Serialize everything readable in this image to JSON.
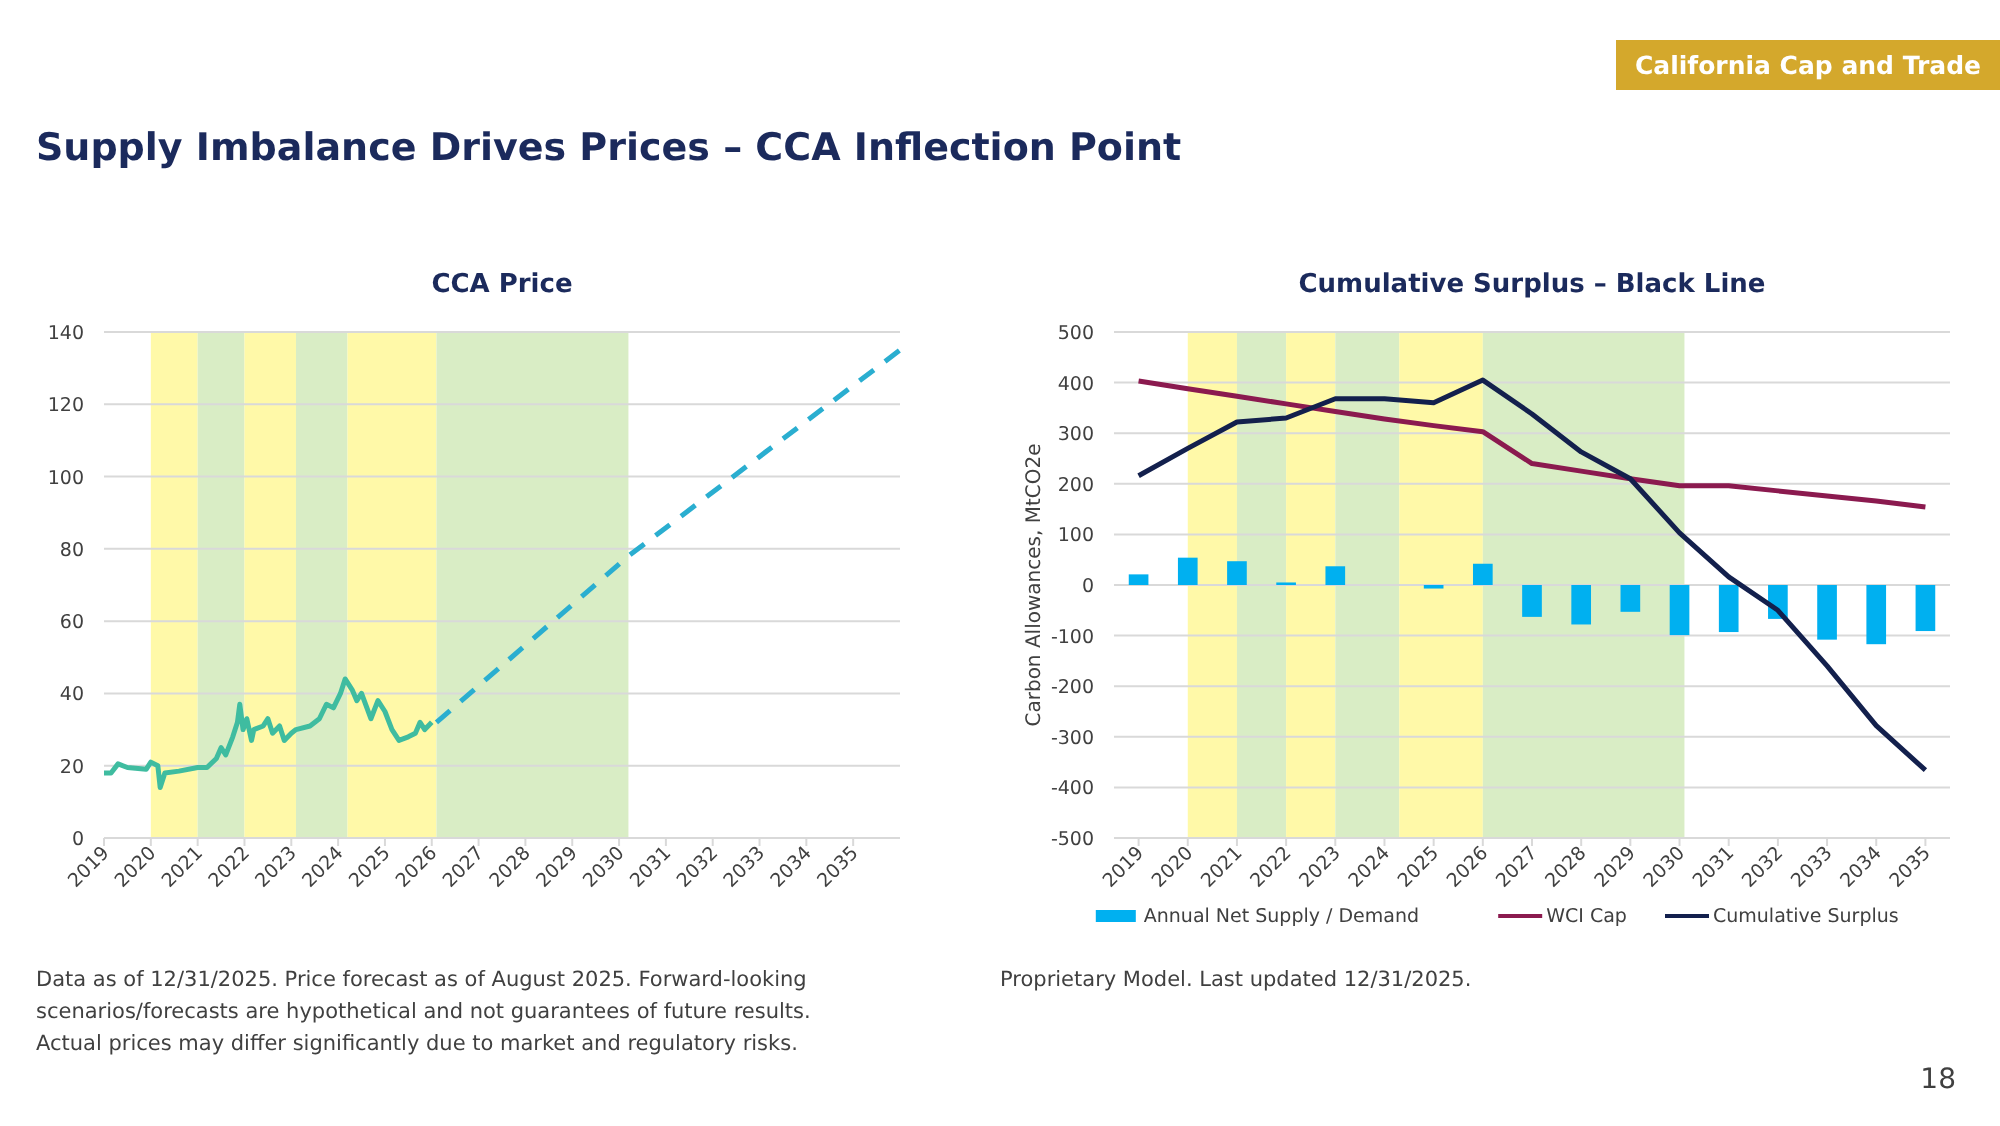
{
  "chart_data": [
    {
      "type": "other",
      "title": "Supply Imbalance Drives Prices – CCA Inflection Point",
      "annotations": [
        "California Cap and Trade",
        "18"
      ]
    },
    {
      "type": "line",
      "title": "CCA Price",
      "xlim": [
        2019,
        2036
      ],
      "xticks": [
        2019,
        2020,
        2021,
        2022,
        2023,
        2024,
        2025,
        2026,
        2027,
        2028,
        2029,
        2030,
        2031,
        2032,
        2033,
        2034,
        2035
      ],
      "ylim": [
        0,
        140
      ],
      "yticks": [
        0,
        20,
        40,
        60,
        80,
        100,
        120,
        140
      ],
      "grid": "y",
      "bands": [
        {
          "axis": "x",
          "from": 2020,
          "to": 2021,
          "color": "#fff9a8"
        },
        {
          "axis": "x",
          "from": 2021,
          "to": 2022,
          "color": "#d9edc5"
        },
        {
          "axis": "x",
          "from": 2022,
          "to": 2023.1,
          "color": "#fff9a8"
        },
        {
          "axis": "x",
          "from": 2023.1,
          "to": 2024.2,
          "color": "#d9edc5"
        },
        {
          "axis": "x",
          "from": 2024.2,
          "to": 2026.1,
          "color": "#fff9a8"
        },
        {
          "axis": "x",
          "from": 2026.1,
          "to": 2030.2,
          "color": "#d9edc5"
        }
      ],
      "series": [
        {
          "color": "#3fbca0",
          "line_style": "solid",
          "x": [
            2019,
            2019.15,
            2019.3,
            2019.5,
            2019.9,
            2020,
            2020.15,
            2020.2,
            2020.3,
            2020.6,
            2021,
            2021.2,
            2021.4,
            2021.5,
            2021.6,
            2021.75,
            2021.85,
            2021.9,
            2021.97,
            2022.05,
            2022.15,
            2022.2,
            2022.4,
            2022.5,
            2022.6,
            2022.75,
            2022.85,
            2023,
            2023.1,
            2023.4,
            2023.6,
            2023.75,
            2023.9,
            2024.05,
            2024.15,
            2024.3,
            2024.4,
            2024.5,
            2024.7,
            2024.85,
            2025,
            2025.15,
            2025.3,
            2025.5,
            2025.65,
            2025.75,
            2025.85,
            2026
          ],
          "values": [
            18,
            18,
            20.5,
            19.5,
            19,
            21,
            20,
            14,
            18,
            18.5,
            19.5,
            19.5,
            22,
            25,
            23,
            28,
            32,
            37,
            30,
            33,
            27,
            30,
            31,
            33,
            29,
            31,
            27,
            29,
            30,
            31,
            33,
            37,
            36,
            40,
            44,
            41,
            38,
            40,
            33,
            38,
            35,
            30,
            27,
            28,
            29,
            32,
            30,
            32
          ]
        },
        {
          "color": "#2aaed0",
          "line_style": "dashed",
          "x": [
            2026.1,
            2030.2,
            2036
          ],
          "values": [
            32,
            78,
            135
          ]
        }
      ],
      "annotations": [
        "Data as of 12/31/2025. Price forecast as of August 2025. Forward-looking scenarios/forecasts are hypothetical and not guarantees of future results. Actual prices may differ significantly due to market and regulatory risks."
      ]
    },
    {
      "type": "line",
      "title": "Cumulative Surplus – Black Line",
      "ylabel": "Carbon Allowances, MtCO2e",
      "x": [
        2019,
        2020,
        2021,
        2022,
        2023,
        2024,
        2025,
        2026,
        2027,
        2028,
        2029,
        2030,
        2031,
        2032,
        2033,
        2034,
        2035
      ],
      "xlim": [
        2018.5,
        2035.5
      ],
      "xticks": [
        2019,
        2020,
        2021,
        2022,
        2023,
        2024,
        2025,
        2026,
        2027,
        2028,
        2029,
        2030,
        2031,
        2032,
        2033,
        2034,
        2035
      ],
      "ylim": [
        -500,
        500
      ],
      "yticks": [
        -500,
        -400,
        -300,
        -200,
        -100,
        0,
        100,
        200,
        300,
        400,
        500
      ],
      "grid": "y",
      "legend": "bottom",
      "bands": [
        {
          "axis": "x",
          "from": 2020,
          "to": 2021,
          "color": "#fff9a8"
        },
        {
          "axis": "x",
          "from": 2021,
          "to": 2022,
          "color": "#d9edc5"
        },
        {
          "axis": "x",
          "from": 2022,
          "to": 2023,
          "color": "#fff9a8"
        },
        {
          "axis": "x",
          "from": 2023,
          "to": 2024.3,
          "color": "#d9edc5"
        },
        {
          "axis": "x",
          "from": 2024.3,
          "to": 2026,
          "color": "#fff9a8"
        },
        {
          "axis": "x",
          "from": 2026,
          "to": 2030.1,
          "color": "#d9edc5"
        }
      ],
      "series": [
        {
          "name": "Annual Net Supply / Demand",
          "type": "bar",
          "color": "#00b0f0",
          "values": [
            21,
            54,
            47,
            5,
            37,
            0,
            -7,
            42,
            -63,
            -78,
            -53,
            -99,
            -93,
            -67,
            -108,
            -117,
            -91
          ]
        },
        {
          "name": "WCI Cap",
          "type": "line",
          "color": "#8b1a4f",
          "values": [
            403,
            388,
            373,
            358,
            343,
            328,
            315,
            303,
            240,
            225,
            210,
            196,
            196,
            186,
            176,
            166,
            154
          ]
        },
        {
          "name": "Cumulative Surplus",
          "type": "line",
          "color": "#13204d",
          "values": [
            216,
            270,
            322,
            330,
            368,
            368,
            360,
            405,
            338,
            263,
            210,
            103,
            16,
            -50,
            -160,
            -278,
            -366
          ]
        }
      ],
      "annotations": [
        "Proprietary Model. Last updated 12/31/2025."
      ]
    }
  ]
}
